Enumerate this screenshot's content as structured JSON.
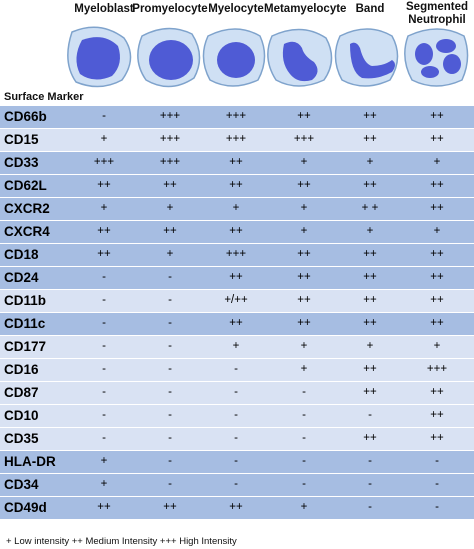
{
  "cell_types": [
    "Myeloblast",
    "Promyelocyte",
    "Myelocyte",
    "Metamyelocyte",
    "Band",
    "Segmented\nNeutrophil"
  ],
  "section_title": "Surface Marker",
  "rows": [
    {
      "marker": "CD66b",
      "values": [
        "-",
        "+++",
        "+++",
        "++",
        "++",
        "++"
      ],
      "group": "A"
    },
    {
      "marker": "CD15",
      "values": [
        "+",
        "+++",
        "+++",
        "+++",
        "++",
        "++"
      ],
      "group": "B"
    },
    {
      "marker": "CD33",
      "values": [
        "+++",
        "+++",
        "++",
        "+",
        "+",
        "+"
      ],
      "group": "A"
    },
    {
      "marker": "CD62L",
      "values": [
        "++",
        "++",
        "++",
        "++",
        "++",
        "++"
      ],
      "group": "A"
    },
    {
      "marker": "CXCR2",
      "values": [
        "+",
        "+",
        "+",
        "+",
        "+ +",
        "++"
      ],
      "group": "A"
    },
    {
      "marker": "CXCR4",
      "values": [
        "++",
        "++",
        "++",
        "+",
        "+",
        "+"
      ],
      "group": "A"
    },
    {
      "marker": "CD18",
      "values": [
        "++",
        "+",
        "+++",
        "++",
        "++",
        "++"
      ],
      "group": "A"
    },
    {
      "marker": "CD24",
      "values": [
        "-",
        "-",
        "++",
        "++",
        "++",
        "++"
      ],
      "group": "A"
    },
    {
      "marker": "CD11b",
      "values": [
        "-",
        "-",
        "+/++",
        "++",
        "++",
        "++"
      ],
      "group": "B"
    },
    {
      "marker": "CD11c",
      "values": [
        "-",
        "-",
        "++",
        "++",
        "++",
        "++"
      ],
      "group": "A"
    },
    {
      "marker": "CD177",
      "values": [
        "-",
        "-",
        "+",
        "+",
        "+",
        "+"
      ],
      "group": "B"
    },
    {
      "marker": "CD16",
      "values": [
        "-",
        "-",
        "-",
        "+",
        "++",
        "+++"
      ],
      "group": "B"
    },
    {
      "marker": "CD87",
      "values": [
        "-",
        "-",
        "-",
        "-",
        "++",
        "++"
      ],
      "group": "B"
    },
    {
      "marker": "CD10",
      "values": [
        "-",
        "-",
        "-",
        "-",
        "-",
        "++"
      ],
      "group": "B"
    },
    {
      "marker": "CD35",
      "values": [
        "-",
        "-",
        "-",
        "-",
        "++",
        "++"
      ],
      "group": "B"
    },
    {
      "marker": "HLA-DR",
      "values": [
        "+",
        "-",
        "-",
        "-",
        "-",
        "-"
      ],
      "group": "A"
    },
    {
      "marker": "CD34",
      "values": [
        "+",
        "-",
        "-",
        "-",
        "-",
        "-"
      ],
      "group": "A"
    },
    {
      "marker": "CD49d",
      "values": [
        "++",
        "++",
        "++",
        "+",
        "-",
        "-"
      ],
      "group": "A"
    }
  ],
  "footer": "+ Low intensity ++ Medium Intensity +++ High Intensity",
  "colors": {
    "group_A": "#a6bde2",
    "group_B": "#d9e2f3",
    "cell_body": "#cfe0f4",
    "cell_outline": "#7fa3cc",
    "nucleus": "#4f5bd5"
  }
}
